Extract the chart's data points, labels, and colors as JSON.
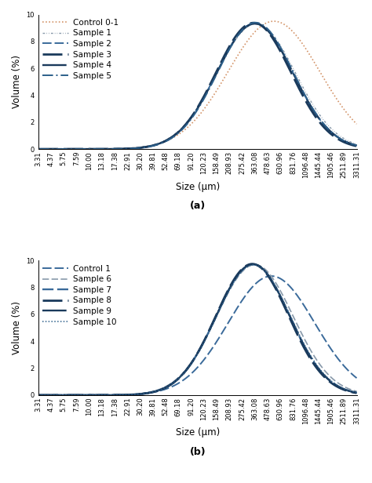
{
  "x_labels_a": [
    "3.31",
    "4.37",
    "5.75",
    "7.59",
    "10.00",
    "13.18",
    "17.38",
    "22.91",
    "30.20",
    "39.81",
    "52.48",
    "69.18",
    "91.20",
    "120.23",
    "158.49",
    "208.93",
    "275.42",
    "363.08",
    "478.63",
    "630.96",
    "831.76",
    "1096.48",
    "1445.44",
    "1905.46",
    "2511.89",
    "3311.31"
  ],
  "x_labels_b": [
    "3.31",
    "4.37",
    "5.75",
    "7.59",
    "10.00",
    "13.18",
    "17.38",
    "22.91",
    "30.20",
    "39.81",
    "52.48",
    "69.18",
    "91.20",
    "120.23",
    "158.49",
    "208.93",
    "275.42",
    "363.08",
    "478.63",
    "630.96",
    "831.76",
    "1096.48",
    "1445.44",
    "1905.46",
    "2511.89",
    "3311.31"
  ],
  "ylabel": "Volume (%)",
  "xlabel": "Size (μm)",
  "ylim": [
    0,
    10
  ],
  "yticks": [
    0,
    2,
    4,
    6,
    8,
    10
  ],
  "label_a": "(a)",
  "label_b": "(b)",
  "curves_a": [
    {
      "name": "Control 0-1",
      "color": "#d4956a",
      "ls_type": "dotted",
      "lw": 1.2,
      "mean_idx": 18.5,
      "std": 3.6,
      "peak": 9.5
    },
    {
      "name": "Sample 1",
      "color": "#8899aa",
      "ls_type": "smalldash",
      "lw": 1.0,
      "mean_idx": 17.1,
      "std": 3.1,
      "peak": 9.3
    },
    {
      "name": "Sample 2",
      "color": "#3a6a9a",
      "ls_type": "dash_med",
      "lw": 1.4,
      "mean_idx": 17.0,
      "std": 3.0,
      "peak": 9.35
    },
    {
      "name": "Sample 3",
      "color": "#1a3a5c",
      "ls_type": "dash_long",
      "lw": 2.0,
      "mean_idx": 16.9,
      "std": 2.95,
      "peak": 9.38
    },
    {
      "name": "Sample 4",
      "color": "#1a3a5c",
      "ls_type": "dash_vlong",
      "lw": 1.7,
      "mean_idx": 17.0,
      "std": 3.0,
      "peak": 9.32
    },
    {
      "name": "Sample 5",
      "color": "#2c5f8a",
      "ls_type": "dashdot",
      "lw": 1.4,
      "mean_idx": 17.05,
      "std": 2.98,
      "peak": 9.4
    }
  ],
  "curves_b": [
    {
      "name": "Control 1",
      "color": "#3a6a9a",
      "ls_type": "dash_med",
      "lw": 1.4,
      "mean_idx": 18.3,
      "std": 3.4,
      "peak": 8.85
    },
    {
      "name": "Sample 6",
      "color": "#8899aa",
      "ls_type": "dash_med2",
      "lw": 1.2,
      "mean_idx": 17.0,
      "std": 3.0,
      "peak": 9.7
    },
    {
      "name": "Sample 7",
      "color": "#3a6a9a",
      "ls_type": "dash_med",
      "lw": 1.7,
      "mean_idx": 16.85,
      "std": 2.88,
      "peak": 9.72
    },
    {
      "name": "Sample 8",
      "color": "#1a3a5c",
      "ls_type": "dash_long",
      "lw": 2.0,
      "mean_idx": 16.8,
      "std": 2.85,
      "peak": 9.75
    },
    {
      "name": "Sample 9",
      "color": "#1a3a5c",
      "ls_type": "dash_vlong",
      "lw": 1.7,
      "mean_idx": 16.85,
      "std": 2.88,
      "peak": 9.73
    },
    {
      "name": "Sample 10",
      "color": "#2c5f8a",
      "ls_type": "dotted",
      "lw": 1.1,
      "mean_idx": 16.9,
      "std": 2.9,
      "peak": 9.68
    }
  ],
  "bg_color": "#ffffff",
  "tick_fontsize": 6.0,
  "axis_label_fontsize": 8.5,
  "legend_fontsize": 7.5,
  "sublabel_fontsize": 9
}
